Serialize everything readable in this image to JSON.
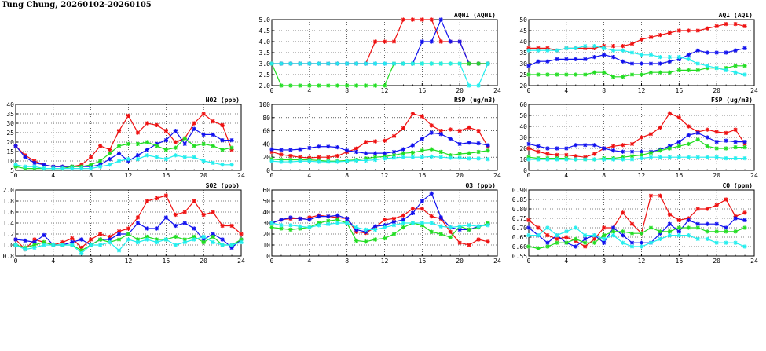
{
  "page": {
    "title": "Tung Chung, 20260102-20260105"
  },
  "colors": {
    "red": "#ee1111",
    "blue": "#1111ee",
    "green": "#22dd22",
    "cyan": "#22eeee"
  },
  "chart_data": [
    {
      "id": "aqhi",
      "type": "line",
      "title": "AQHI (AQHI)",
      "xlim": [
        0,
        24
      ],
      "xticks": [
        0,
        4,
        8,
        12,
        16,
        20,
        24
      ],
      "ylim": [
        2.0,
        5.0
      ],
      "yticks": [
        2.0,
        2.5,
        3.0,
        3.5,
        4.0,
        4.5,
        5.0
      ],
      "ytick_labels": [
        "2.0",
        "2.5",
        "3.0",
        "3.5",
        "4.0",
        "4.5",
        "5.0"
      ],
      "grid": true,
      "series": [
        {
          "color": "red",
          "values": [
            3,
            3,
            3,
            3,
            3,
            3,
            3,
            3,
            3,
            3,
            3,
            4,
            4,
            4,
            5,
            5,
            5,
            5,
            4,
            4,
            4,
            3,
            3,
            3
          ]
        },
        {
          "color": "blue",
          "values": [
            3,
            3,
            3,
            3,
            3,
            3,
            3,
            3,
            3,
            3,
            3,
            3,
            3,
            3,
            3,
            3,
            4,
            4,
            5,
            4,
            4,
            3,
            3,
            3
          ]
        },
        {
          "color": "green",
          "values": [
            3,
            2,
            2,
            2,
            2,
            2,
            2,
            2,
            2,
            2,
            2,
            2,
            2,
            3,
            3,
            3,
            3,
            3,
            3,
            3,
            3,
            3,
            3,
            3
          ]
        },
        {
          "color": "cyan",
          "values": [
            3,
            3,
            3,
            3,
            3,
            3,
            3,
            3,
            3,
            3,
            3,
            3,
            3,
            3,
            3,
            3,
            3,
            3,
            3,
            3,
            3,
            2,
            2,
            3
          ]
        }
      ]
    },
    {
      "id": "aqi",
      "type": "line",
      "title": "AQI (AQI)",
      "xlim": [
        0,
        24
      ],
      "xticks": [
        0,
        4,
        8,
        12,
        16,
        20,
        24
      ],
      "ylim": [
        20,
        50
      ],
      "yticks": [
        20,
        25,
        30,
        35,
        40,
        45,
        50
      ],
      "ytick_labels": [
        "20",
        "25",
        "30",
        "35",
        "40",
        "45",
        "50"
      ],
      "grid": true,
      "series": [
        {
          "color": "red",
          "values": [
            37,
            37,
            37,
            36,
            37,
            37,
            37,
            37,
            38,
            38,
            38,
            39,
            41,
            42,
            43,
            44,
            45,
            45,
            45,
            46,
            47,
            48,
            48,
            47
          ]
        },
        {
          "color": "blue",
          "values": [
            29,
            31,
            31,
            32,
            32,
            32,
            32,
            33,
            34,
            33,
            31,
            30,
            30,
            30,
            30,
            31,
            32,
            34,
            36,
            35,
            35,
            35,
            36,
            37
          ]
        },
        {
          "color": "green",
          "values": [
            25,
            25,
            25,
            25,
            25,
            25,
            25,
            26,
            26,
            24,
            24,
            25,
            25,
            26,
            26,
            26,
            27,
            27,
            27,
            28,
            28,
            28,
            29,
            29
          ]
        },
        {
          "color": "cyan",
          "values": [
            36,
            36,
            36,
            36,
            37,
            37,
            38,
            38,
            37,
            36,
            36,
            35,
            34,
            34,
            33,
            33,
            33,
            32,
            30,
            29,
            28,
            27,
            26,
            25
          ]
        }
      ]
    },
    {
      "id": "no2",
      "type": "line",
      "title": "NO2 (ppb)",
      "xlim": [
        0,
        24
      ],
      "xticks": [
        0,
        4,
        8,
        12,
        16,
        20,
        24
      ],
      "ylim": [
        5,
        40
      ],
      "yticks": [
        5,
        10,
        15,
        20,
        25,
        30,
        35,
        40
      ],
      "ytick_labels": [
        "5",
        "10",
        "15",
        "20",
        "25",
        "30",
        "35",
        "40"
      ],
      "grid": true,
      "series": [
        {
          "color": "red",
          "values": [
            18,
            13,
            10,
            8,
            7,
            7,
            7,
            8,
            12,
            18,
            16,
            26,
            34,
            25,
            30,
            29,
            26,
            20,
            22,
            30,
            35,
            31,
            29,
            16
          ]
        },
        {
          "color": "blue",
          "values": [
            18,
            12,
            9,
            8,
            7,
            7,
            7,
            7,
            7,
            8,
            11,
            14,
            10,
            13,
            16,
            19,
            21,
            26,
            19,
            27,
            24,
            24,
            21,
            21
          ]
        },
        {
          "color": "green",
          "values": [
            7,
            6,
            6,
            6,
            6,
            6,
            7,
            7,
            8,
            10,
            14,
            18,
            19,
            19,
            20,
            18,
            16,
            17,
            22,
            18,
            19,
            18,
            16,
            17
          ]
        },
        {
          "color": "cyan",
          "values": [
            8,
            7,
            7,
            6,
            6,
            6,
            6,
            6,
            6,
            7,
            8,
            10,
            11,
            11,
            13,
            12,
            11,
            13,
            12,
            12,
            10,
            9,
            8,
            8
          ]
        }
      ]
    },
    {
      "id": "rsp",
      "type": "line",
      "title": "RSP (ug/m3)",
      "xlim": [
        0,
        24
      ],
      "xticks": [
        0,
        4,
        8,
        12,
        16,
        20,
        24
      ],
      "ylim": [
        0,
        100
      ],
      "yticks": [
        0,
        20,
        40,
        60,
        80,
        100
      ],
      "ytick_labels": [
        "0",
        "20",
        "40",
        "60",
        "80",
        "100"
      ],
      "grid": true,
      "series": [
        {
          "color": "red",
          "values": [
            28,
            24,
            22,
            20,
            19,
            20,
            20,
            22,
            28,
            33,
            43,
            44,
            45,
            52,
            64,
            86,
            82,
            68,
            60,
            62,
            60,
            65,
            60,
            36
          ]
        },
        {
          "color": "blue",
          "values": [
            32,
            31,
            31,
            32,
            34,
            36,
            36,
            35,
            30,
            28,
            26,
            26,
            26,
            28,
            32,
            38,
            48,
            57,
            55,
            48,
            40,
            42,
            41,
            38
          ]
        },
        {
          "color": "green",
          "values": [
            17,
            16,
            16,
            16,
            16,
            15,
            14,
            14,
            15,
            16,
            18,
            20,
            21,
            23,
            26,
            27,
            30,
            32,
            28,
            23,
            25,
            26,
            28,
            30
          ]
        },
        {
          "color": "cyan",
          "values": [
            14,
            13,
            13,
            14,
            14,
            13,
            13,
            13,
            14,
            15,
            15,
            16,
            18,
            19,
            20,
            20,
            20,
            21,
            20,
            19,
            19,
            18,
            18,
            17
          ]
        }
      ]
    },
    {
      "id": "fsp",
      "type": "line",
      "title": "FSP (ug/m3)",
      "xlim": [
        0,
        24
      ],
      "xticks": [
        0,
        4,
        8,
        12,
        16,
        20,
        24
      ],
      "ylim": [
        0,
        60
      ],
      "yticks": [
        0,
        10,
        20,
        30,
        40,
        50,
        60
      ],
      "ytick_labels": [
        "0",
        "10",
        "20",
        "30",
        "40",
        "50",
        "60"
      ],
      "grid": true,
      "series": [
        {
          "color": "red",
          "values": [
            20,
            17,
            15,
            14,
            14,
            13,
            12,
            15,
            20,
            22,
            23,
            24,
            30,
            33,
            39,
            52,
            48,
            40,
            35,
            37,
            35,
            34,
            37,
            24
          ]
        },
        {
          "color": "blue",
          "values": [
            24,
            22,
            20,
            20,
            20,
            23,
            23,
            23,
            20,
            18,
            17,
            17,
            17,
            17,
            19,
            22,
            26,
            32,
            34,
            30,
            26,
            27,
            26,
            26
          ]
        },
        {
          "color": "green",
          "values": [
            12,
            11,
            11,
            11,
            11,
            10,
            10,
            10,
            11,
            11,
            12,
            13,
            14,
            16,
            18,
            20,
            22,
            24,
            28,
            22,
            20,
            20,
            21,
            21
          ]
        },
        {
          "color": "cyan",
          "values": [
            10,
            10,
            10,
            10,
            10,
            10,
            10,
            10,
            10,
            10,
            10,
            10,
            11,
            12,
            12,
            12,
            12,
            12,
            12,
            12,
            12,
            11,
            11,
            11
          ]
        }
      ]
    },
    {
      "id": "so2",
      "type": "line",
      "title": "SO2 (ppb)",
      "xlim": [
        0,
        24
      ],
      "xticks": [
        0,
        4,
        8,
        12,
        16,
        20,
        24
      ],
      "ylim": [
        0.8,
        2.0
      ],
      "yticks": [
        0.8,
        1.0,
        1.2,
        1.4,
        1.6,
        1.8,
        2.0
      ],
      "ytick_labels": [
        "0.8",
        "1.0",
        "1.2",
        "1.4",
        "1.6",
        "1.8",
        "2.0"
      ],
      "grid": true,
      "series": [
        {
          "color": "red",
          "values": [
            1.1,
            0.92,
            1.1,
            1.05,
            1.0,
            1.05,
            1.12,
            0.95,
            1.1,
            1.2,
            1.15,
            1.25,
            1.3,
            1.5,
            1.8,
            1.85,
            1.9,
            1.55,
            1.6,
            1.8,
            1.55,
            1.6,
            1.35,
            1.35,
            1.2
          ]
        },
        {
          "color": "blue",
          "values": [
            1.1,
            1.08,
            1.05,
            1.18,
            1.0,
            1.0,
            1.05,
            1.1,
            1.0,
            1.1,
            1.1,
            1.2,
            1.2,
            1.4,
            1.3,
            1.3,
            1.5,
            1.35,
            1.4,
            1.3,
            1.1,
            1.2,
            1.1,
            0.95,
            1.1
          ]
        },
        {
          "color": "green",
          "values": [
            1.0,
            0.95,
            1.0,
            1.05,
            1.0,
            1.0,
            1.0,
            0.9,
            1.0,
            1.1,
            1.05,
            1.1,
            1.2,
            1.1,
            1.15,
            1.1,
            1.1,
            1.15,
            1.1,
            1.15,
            1.05,
            1.15,
            1.0,
            1.0,
            1.1
          ]
        },
        {
          "color": "cyan",
          "values": [
            1.0,
            0.92,
            0.95,
            1.0,
            1.0,
            1.0,
            1.0,
            0.85,
            1.0,
            1.0,
            1.05,
            0.9,
            1.1,
            1.05,
            1.1,
            1.05,
            1.1,
            1.0,
            1.05,
            1.1,
            1.15,
            1.05,
            1.0,
            1.0,
            1.05
          ]
        }
      ]
    },
    {
      "id": "o3",
      "type": "line",
      "title": "O3 (ppb)",
      "xlim": [
        0,
        24
      ],
      "xticks": [
        0,
        4,
        8,
        12,
        16,
        20,
        24
      ],
      "ylim": [
        0,
        60
      ],
      "yticks": [
        0,
        10,
        20,
        30,
        40,
        50,
        60
      ],
      "ytick_labels": [
        "0",
        "10",
        "20",
        "30",
        "40",
        "50",
        "60"
      ],
      "grid": true,
      "series": [
        {
          "color": "red",
          "values": [
            30,
            33,
            34,
            34,
            35,
            37,
            36,
            35,
            34,
            22,
            21,
            26,
            33,
            34,
            37,
            43,
            43,
            36,
            34,
            22,
            12,
            10,
            15,
            13
          ]
        },
        {
          "color": "blue",
          "values": [
            30,
            33,
            35,
            34,
            33,
            36,
            36,
            37,
            34,
            24,
            22,
            27,
            28,
            31,
            33,
            39,
            50,
            57,
            35,
            26,
            24,
            24,
            27,
            29
          ]
        },
        {
          "color": "green",
          "values": [
            26,
            25,
            24,
            25,
            26,
            30,
            32,
            33,
            30,
            14,
            13,
            15,
            16,
            20,
            26,
            30,
            28,
            22,
            20,
            17,
            27,
            24,
            26,
            30
          ]
        },
        {
          "color": "cyan",
          "values": [
            30,
            28,
            28,
            27,
            26,
            28,
            29,
            30,
            30,
            26,
            24,
            24,
            26,
            28,
            30,
            30,
            30,
            30,
            27,
            26,
            27,
            28,
            27,
            28
          ]
        }
      ]
    },
    {
      "id": "co",
      "type": "line",
      "title": "CO (ppm)",
      "xlim": [
        0,
        24
      ],
      "xticks": [
        0,
        4,
        8,
        12,
        16,
        20,
        24
      ],
      "ylim": [
        0.55,
        0.9
      ],
      "yticks": [
        0.55,
        0.6,
        0.65,
        0.7,
        0.75,
        0.8,
        0.85,
        0.9
      ],
      "ytick_labels": [
        "0.55",
        "0.60",
        "0.65",
        "0.70",
        "0.75",
        "0.80",
        "0.85",
        "0.90"
      ],
      "grid": true,
      "series": [
        {
          "color": "red",
          "values": [
            0.74,
            0.7,
            0.66,
            0.64,
            0.65,
            0.63,
            0.6,
            0.64,
            0.7,
            0.7,
            0.78,
            0.72,
            0.67,
            0.87,
            0.87,
            0.77,
            0.74,
            0.75,
            0.8,
            0.8,
            0.82,
            0.85,
            0.76,
            0.78
          ]
        },
        {
          "color": "blue",
          "values": [
            0.7,
            0.66,
            0.62,
            0.66,
            0.62,
            0.6,
            0.64,
            0.66,
            0.62,
            0.7,
            0.66,
            0.62,
            0.62,
            0.62,
            0.67,
            0.72,
            0.68,
            0.74,
            0.72,
            0.72,
            0.72,
            0.7,
            0.75,
            0.74
          ]
        },
        {
          "color": "green",
          "values": [
            0.6,
            0.59,
            0.6,
            0.62,
            0.62,
            0.64,
            0.62,
            0.62,
            0.66,
            0.68,
            0.68,
            0.67,
            0.67,
            0.7,
            0.68,
            0.68,
            0.7,
            0.7,
            0.7,
            0.68,
            0.68,
            0.68,
            0.68,
            0.7
          ]
        },
        {
          "color": "cyan",
          "values": [
            0.66,
            0.66,
            0.7,
            0.66,
            0.68,
            0.7,
            0.66,
            0.66,
            0.64,
            0.66,
            0.62,
            0.6,
            0.6,
            0.62,
            0.64,
            0.66,
            0.66,
            0.66,
            0.64,
            0.64,
            0.62,
            0.62,
            0.62,
            0.6
          ]
        }
      ]
    }
  ]
}
